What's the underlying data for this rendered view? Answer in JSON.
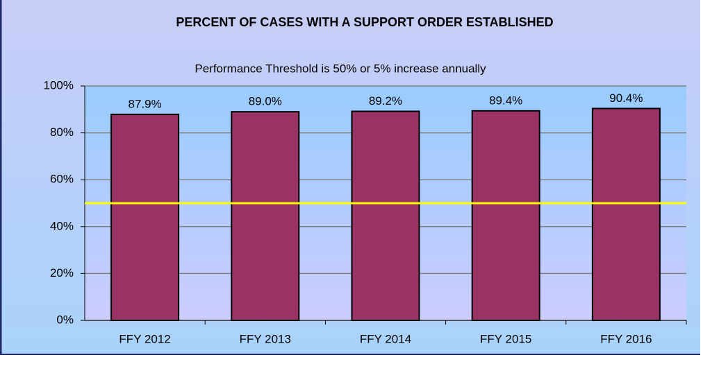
{
  "chart_data": {
    "type": "bar",
    "title": "PERCENT OF CASES WITH A SUPPORT ORDER ESTABLISHED",
    "subtitle": "Performance Threshold  is 50% or 5% increase annually",
    "categories": [
      "FFY 2012",
      "FFY 2013",
      "FFY 2014",
      "FFY 2015",
      "FFY 2016"
    ],
    "values": [
      87.9,
      89.0,
      89.2,
      89.4,
      90.4
    ],
    "value_labels": [
      "87.9%",
      "89.0%",
      "89.2%",
      "89.4%",
      "90.4%"
    ],
    "color": "#993366",
    "reference_line": {
      "value": 50,
      "color": "#ffff00"
    },
    "ylim": [
      0,
      100
    ],
    "yticks": [
      {
        "value": 0,
        "label": "0%"
      },
      {
        "value": 20,
        "label": "20%"
      },
      {
        "value": 40,
        "label": "40%"
      },
      {
        "value": 60,
        "label": "60%"
      },
      {
        "value": 80,
        "label": "80%"
      },
      {
        "value": 100,
        "label": "100%"
      }
    ],
    "grid": true
  }
}
